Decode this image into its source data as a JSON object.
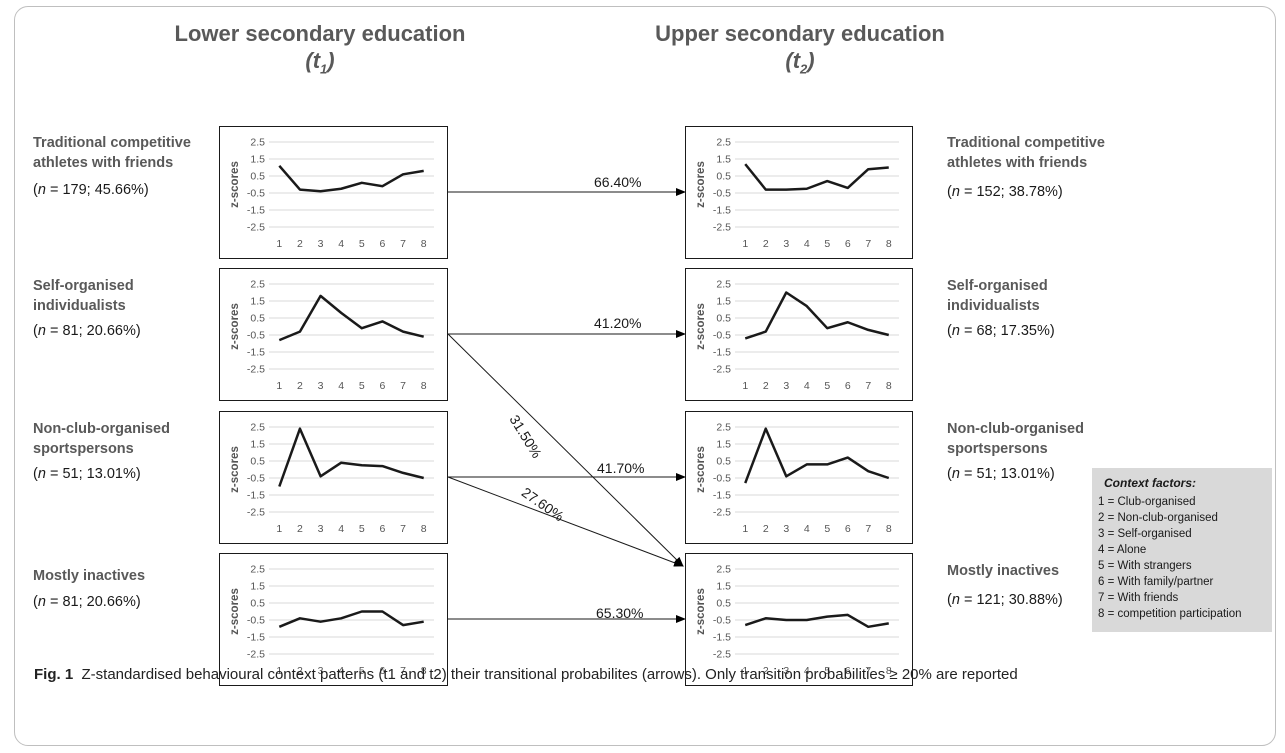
{
  "columns": {
    "left_title": "Lower secondary education",
    "left_time": "t",
    "left_sub": "1",
    "right_title": "Upper secondary education",
    "right_time": "t",
    "right_sub": "2"
  },
  "axis": {
    "ylabel": "z-scores",
    "yticks": [
      "2.5",
      "1.5",
      "0.5",
      "-0.5",
      "-1.5",
      "-2.5"
    ],
    "xticks": [
      "1",
      "2",
      "3",
      "4",
      "5",
      "6",
      "7",
      "8"
    ]
  },
  "left_groups": [
    {
      "name": "Traditional competitive athletes with friends",
      "n": "179",
      "pct": "45.66%"
    },
    {
      "name": "Self-organised individualists",
      "n": "81",
      "pct": "20.66%"
    },
    {
      "name": "Non-club-organised sportspersons",
      "n": "51",
      "pct": "13.01%"
    },
    {
      "name": "Mostly inactives",
      "n": "81",
      "pct": "20.66%"
    }
  ],
  "right_groups": [
    {
      "name": "Traditional competitive athletes with friends",
      "n": "152",
      "pct": "38.78%"
    },
    {
      "name": "Self-organised individualists",
      "n": "68",
      "pct": "17.35%"
    },
    {
      "name": "Non-club-organised sportspersons",
      "n": "51",
      "pct": "13.01%"
    },
    {
      "name": "Mostly inactives",
      "n": "121",
      "pct": "30.88%"
    }
  ],
  "transitions": [
    {
      "from": 0,
      "to": 0,
      "label": "66.40%"
    },
    {
      "from": 1,
      "to": 1,
      "label": "41.20%"
    },
    {
      "from": 1,
      "to": 3,
      "label": "31.50%"
    },
    {
      "from": 2,
      "to": 2,
      "label": "41.70%"
    },
    {
      "from": 2,
      "to": 3,
      "label": "27.60%"
    },
    {
      "from": 3,
      "to": 3,
      "label": "65.30%"
    }
  ],
  "context_factors": {
    "title": "Context factors:",
    "items": [
      "1 = Club-organised",
      "2 = Non-club-organised",
      "3 = Self-organised",
      "4 = Alone",
      "5 = With strangers",
      "6 = With family/partner",
      "7 = With friends",
      "8 = competition participation"
    ]
  },
  "caption": {
    "label": "Fig. 1",
    "text": "Z-standardised behavioural context patterns (t1 and t2) their transitional probabilites (arrows). Only transition probabilities ≥ 20% are reported"
  },
  "chart_data": [
    {
      "type": "line",
      "name": "left-1",
      "x": [
        1,
        2,
        3,
        4,
        5,
        6,
        7,
        8
      ],
      "values": [
        1.1,
        -0.3,
        -0.4,
        -0.25,
        0.1,
        -0.1,
        0.6,
        0.8
      ],
      "ylim": [
        -2.5,
        2.5
      ]
    },
    {
      "type": "line",
      "name": "left-2",
      "x": [
        1,
        2,
        3,
        4,
        5,
        6,
        7,
        8
      ],
      "values": [
        -0.8,
        -0.3,
        1.8,
        0.8,
        -0.1,
        0.3,
        -0.3,
        -0.6
      ],
      "ylim": [
        -2.5,
        2.5
      ]
    },
    {
      "type": "line",
      "name": "left-3",
      "x": [
        1,
        2,
        3,
        4,
        5,
        6,
        7,
        8
      ],
      "values": [
        -1.0,
        2.4,
        -0.4,
        0.4,
        0.25,
        0.2,
        -0.2,
        -0.5
      ],
      "ylim": [
        -2.5,
        2.5
      ]
    },
    {
      "type": "line",
      "name": "left-4",
      "x": [
        1,
        2,
        3,
        4,
        5,
        6,
        7,
        8
      ],
      "values": [
        -0.9,
        -0.4,
        -0.6,
        -0.4,
        0.0,
        0.0,
        -0.8,
        -0.6
      ],
      "ylim": [
        -2.5,
        2.5
      ]
    },
    {
      "type": "line",
      "name": "right-1",
      "x": [
        1,
        2,
        3,
        4,
        5,
        6,
        7,
        8
      ],
      "values": [
        1.2,
        -0.3,
        -0.3,
        -0.25,
        0.2,
        -0.2,
        0.9,
        1.0
      ],
      "ylim": [
        -2.5,
        2.5
      ]
    },
    {
      "type": "line",
      "name": "right-2",
      "x": [
        1,
        2,
        3,
        4,
        5,
        6,
        7,
        8
      ],
      "values": [
        -0.7,
        -0.3,
        2.0,
        1.2,
        -0.1,
        0.25,
        -0.2,
        -0.5
      ],
      "ylim": [
        -2.5,
        2.5
      ]
    },
    {
      "type": "line",
      "name": "right-3",
      "x": [
        1,
        2,
        3,
        4,
        5,
        6,
        7,
        8
      ],
      "values": [
        -0.8,
        2.4,
        -0.4,
        0.3,
        0.3,
        0.7,
        -0.1,
        -0.5
      ],
      "ylim": [
        -2.5,
        2.5
      ]
    },
    {
      "type": "line",
      "name": "right-4",
      "x": [
        1,
        2,
        3,
        4,
        5,
        6,
        7,
        8
      ],
      "values": [
        -0.8,
        -0.4,
        -0.5,
        -0.5,
        -0.3,
        -0.2,
        -0.9,
        -0.7
      ],
      "ylim": [
        -2.5,
        2.5
      ]
    }
  ]
}
